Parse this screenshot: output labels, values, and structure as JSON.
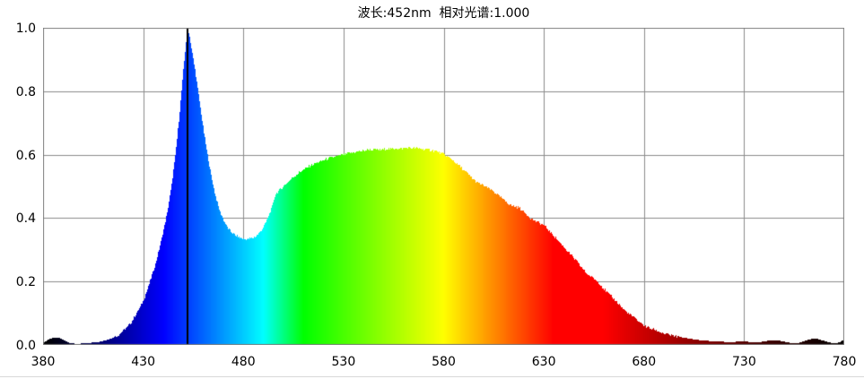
{
  "chart_data": {
    "type": "area",
    "title": "波长:452nm  相对光谱:1.000",
    "title_parts": {
      "wavelength_label": "波长",
      "wavelength_value": "452nm",
      "relative_label": "相对光谱",
      "relative_value": "1.000"
    },
    "xlim": [
      380,
      780
    ],
    "ylim": [
      0,
      1
    ],
    "x_tick_labels": [
      "380",
      "430",
      "480",
      "530",
      "580",
      "630",
      "680",
      "730",
      "780"
    ],
    "y_tick_labels": [
      "1.0",
      "0.8",
      "0.6",
      "0.4",
      "0.2",
      "0.0"
    ],
    "grid": true,
    "legend": false,
    "peak": {
      "wavelength_nm": 452,
      "relative_intensity": 1.0
    },
    "colors": {
      "background": "#ffffff",
      "text": "#000000",
      "grid": "#8c8c8c",
      "border": "#7f7f7f",
      "peak_marker_line": "#000000",
      "bottom_divider": "#d8d8d8"
    },
    "series": [
      {
        "name": "relative-spectral-power",
        "fill": "wavelength-rainbow-gradient",
        "points": [
          [
            380,
            0.008
          ],
          [
            382,
            0.015
          ],
          [
            384,
            0.021
          ],
          [
            386,
            0.024
          ],
          [
            388,
            0.022
          ],
          [
            390,
            0.016
          ],
          [
            392,
            0.009
          ],
          [
            394,
            0.005
          ],
          [
            396,
            0.004
          ],
          [
            398,
            0.004
          ],
          [
            400,
            0.005
          ],
          [
            402,
            0.006
          ],
          [
            404,
            0.007
          ],
          [
            406,
            0.008
          ],
          [
            408,
            0.01
          ],
          [
            410,
            0.013
          ],
          [
            412,
            0.016
          ],
          [
            414,
            0.02
          ],
          [
            416,
            0.026
          ],
          [
            418,
            0.034
          ],
          [
            420,
            0.045
          ],
          [
            422,
            0.057
          ],
          [
            424,
            0.073
          ],
          [
            426,
            0.094
          ],
          [
            428,
            0.115
          ],
          [
            430,
            0.14
          ],
          [
            432,
            0.175
          ],
          [
            434,
            0.215
          ],
          [
            436,
            0.255
          ],
          [
            438,
            0.305
          ],
          [
            440,
            0.36
          ],
          [
            442,
            0.42
          ],
          [
            444,
            0.5
          ],
          [
            446,
            0.6
          ],
          [
            448,
            0.725
          ],
          [
            450,
            0.87
          ],
          [
            451,
            0.935
          ],
          [
            452,
            1.0
          ],
          [
            453,
            0.975
          ],
          [
            454,
            0.935
          ],
          [
            456,
            0.86
          ],
          [
            458,
            0.77
          ],
          [
            460,
            0.68
          ],
          [
            462,
            0.6
          ],
          [
            464,
            0.53
          ],
          [
            466,
            0.47
          ],
          [
            468,
            0.425
          ],
          [
            470,
            0.395
          ],
          [
            472,
            0.37
          ],
          [
            474,
            0.355
          ],
          [
            476,
            0.345
          ],
          [
            478,
            0.339
          ],
          [
            480,
            0.335
          ],
          [
            482,
            0.334
          ],
          [
            484,
            0.336
          ],
          [
            486,
            0.342
          ],
          [
            488,
            0.353
          ],
          [
            490,
            0.372
          ],
          [
            492,
            0.398
          ],
          [
            494,
            0.43
          ],
          [
            496,
            0.474
          ],
          [
            498,
            0.488
          ],
          [
            500,
            0.5
          ],
          [
            502,
            0.512
          ],
          [
            504,
            0.524
          ],
          [
            506,
            0.535
          ],
          [
            508,
            0.545
          ],
          [
            510,
            0.553
          ],
          [
            512,
            0.56
          ],
          [
            514,
            0.567
          ],
          [
            516,
            0.573
          ],
          [
            518,
            0.578
          ],
          [
            520,
            0.583
          ],
          [
            522,
            0.587
          ],
          [
            524,
            0.591
          ],
          [
            526,
            0.594
          ],
          [
            528,
            0.597
          ],
          [
            530,
            0.6
          ],
          [
            532,
            0.603
          ],
          [
            534,
            0.606
          ],
          [
            536,
            0.608
          ],
          [
            538,
            0.61
          ],
          [
            540,
            0.612
          ],
          [
            542,
            0.615
          ],
          [
            543,
            0.617
          ],
          [
            544,
            0.614
          ],
          [
            546,
            0.616
          ],
          [
            548,
            0.614
          ],
          [
            550,
            0.617
          ],
          [
            552,
            0.619
          ],
          [
            554,
            0.617
          ],
          [
            556,
            0.62
          ],
          [
            558,
            0.618
          ],
          [
            560,
            0.621
          ],
          [
            562,
            0.622
          ],
          [
            564,
            0.62
          ],
          [
            566,
            0.621
          ],
          [
            568,
            0.619
          ],
          [
            570,
            0.618
          ],
          [
            572,
            0.616
          ],
          [
            574,
            0.614
          ],
          [
            576,
            0.611
          ],
          [
            578,
            0.607
          ],
          [
            580,
            0.601
          ],
          [
            582,
            0.594
          ],
          [
            584,
            0.585
          ],
          [
            586,
            0.575
          ],
          [
            588,
            0.564
          ],
          [
            590,
            0.552
          ],
          [
            592,
            0.54
          ],
          [
            594,
            0.528
          ],
          [
            596,
            0.515
          ],
          [
            598,
            0.508
          ],
          [
            600,
            0.502
          ],
          [
            602,
            0.496
          ],
          [
            604,
            0.488
          ],
          [
            606,
            0.478
          ],
          [
            608,
            0.468
          ],
          [
            610,
            0.458
          ],
          [
            612,
            0.448
          ],
          [
            614,
            0.44
          ],
          [
            616,
            0.436
          ],
          [
            618,
            0.432
          ],
          [
            620,
            0.42
          ],
          [
            622,
            0.408
          ],
          [
            624,
            0.398
          ],
          [
            626,
            0.39
          ],
          [
            628,
            0.384
          ],
          [
            630,
            0.378
          ],
          [
            632,
            0.366
          ],
          [
            634,
            0.352
          ],
          [
            636,
            0.338
          ],
          [
            638,
            0.324
          ],
          [
            640,
            0.31
          ],
          [
            642,
            0.296
          ],
          [
            644,
            0.282
          ],
          [
            646,
            0.268
          ],
          [
            648,
            0.252
          ],
          [
            650,
            0.236
          ],
          [
            652,
            0.222
          ],
          [
            654,
            0.214
          ],
          [
            656,
            0.205
          ],
          [
            658,
            0.193
          ],
          [
            660,
            0.178
          ],
          [
            662,
            0.164
          ],
          [
            664,
            0.152
          ],
          [
            666,
            0.14
          ],
          [
            668,
            0.126
          ],
          [
            670,
            0.112
          ],
          [
            672,
            0.101
          ],
          [
            674,
            0.092
          ],
          [
            676,
            0.083
          ],
          [
            678,
            0.072
          ],
          [
            680,
            0.062
          ],
          [
            682,
            0.056
          ],
          [
            684,
            0.051
          ],
          [
            686,
            0.046
          ],
          [
            688,
            0.041
          ],
          [
            690,
            0.037
          ],
          [
            692,
            0.033
          ],
          [
            694,
            0.03
          ],
          [
            696,
            0.027
          ],
          [
            698,
            0.025
          ],
          [
            700,
            0.023
          ],
          [
            702,
            0.021
          ],
          [
            704,
            0.019
          ],
          [
            706,
            0.017
          ],
          [
            708,
            0.015
          ],
          [
            710,
            0.014
          ],
          [
            712,
            0.013
          ],
          [
            714,
            0.012
          ],
          [
            716,
            0.011
          ],
          [
            718,
            0.01
          ],
          [
            720,
            0.01
          ],
          [
            722,
            0.009
          ],
          [
            724,
            0.009
          ],
          [
            726,
            0.01
          ],
          [
            728,
            0.01
          ],
          [
            730,
            0.011
          ],
          [
            732,
            0.01
          ],
          [
            734,
            0.009
          ],
          [
            736,
            0.008
          ],
          [
            738,
            0.009
          ],
          [
            740,
            0.011
          ],
          [
            742,
            0.013
          ],
          [
            744,
            0.015
          ],
          [
            746,
            0.015
          ],
          [
            748,
            0.013
          ],
          [
            750,
            0.011
          ],
          [
            752,
            0.008
          ],
          [
            754,
            0.006
          ],
          [
            756,
            0.005
          ],
          [
            758,
            0.007
          ],
          [
            760,
            0.012
          ],
          [
            762,
            0.016
          ],
          [
            764,
            0.019
          ],
          [
            766,
            0.02
          ],
          [
            768,
            0.017
          ],
          [
            770,
            0.013
          ],
          [
            772,
            0.009
          ],
          [
            774,
            0.006
          ],
          [
            776,
            0.005
          ],
          [
            778,
            0.009
          ],
          [
            780,
            0.016
          ]
        ]
      }
    ]
  }
}
